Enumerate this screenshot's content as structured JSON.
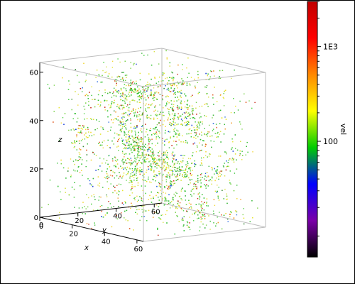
{
  "chart_data": {
    "type": "scatter",
    "title": "",
    "xlabel": "x",
    "ylabel": "y",
    "zlabel": "z",
    "x_ticks": [
      "0",
      "20",
      "40",
      "60"
    ],
    "y_ticks": [
      "0",
      "20",
      "40",
      "60"
    ],
    "z_ticks": [
      "0",
      "20",
      "40",
      "60"
    ],
    "xlim": [
      0,
      64
    ],
    "ylim": [
      0,
      64
    ],
    "zlim": [
      0,
      64
    ],
    "grid": false,
    "colorbar": {
      "label": "vel",
      "scale": "log",
      "range": [
        6,
        3000
      ],
      "tick_labels": [
        "100",
        "1E3"
      ],
      "tick_values": [
        100,
        1000
      ],
      "colors": [
        "#000000",
        "#7a00a8",
        "#0000ff",
        "#00cc00",
        "#ffff00",
        "#ff8800",
        "#ff0000",
        "#c00000"
      ]
    },
    "point_color_mix": {
      "green": 0.55,
      "yellow": 0.3,
      "orange_red": 0.1,
      "blue": 0.05
    }
  }
}
